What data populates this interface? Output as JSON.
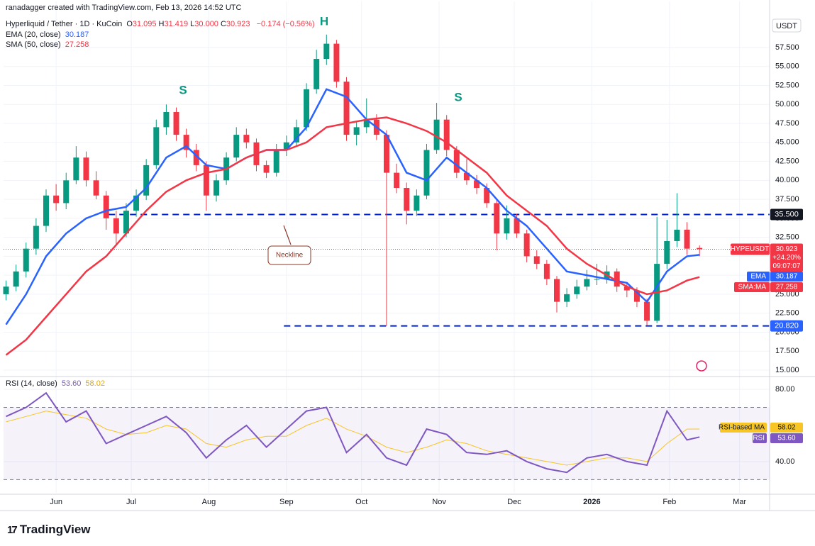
{
  "header": {
    "credit": "ranadagger created with TradingView.com, Feb 13, 2026 14:52 UTC",
    "symbol": "Hyperliquid / Tether · 1D · KuCoin",
    "ohlc": [
      {
        "key": "O",
        "value": "31.095"
      },
      {
        "key": "H",
        "value": "31.419"
      },
      {
        "key": "L",
        "value": "30.000"
      },
      {
        "key": "C",
        "value": "30.923"
      }
    ],
    "change": "−0.174 (−0.56%)"
  },
  "chart_data": [
    {
      "type": "candlestick",
      "currency": "USDT",
      "xlim": [
        -21,
        285
      ],
      "xticks": [
        {
          "value": 0,
          "label": "Jun"
        },
        {
          "value": 30,
          "label": "Jul"
        },
        {
          "value": 61,
          "label": "Aug"
        },
        {
          "value": 92,
          "label": "Sep"
        },
        {
          "value": 122,
          "label": "Oct"
        },
        {
          "value": 153,
          "label": "Nov"
        },
        {
          "value": 183,
          "label": "Dec"
        },
        {
          "value": 214,
          "label": "2026"
        },
        {
          "value": 245,
          "label": "Feb"
        },
        {
          "value": 273,
          "label": "Mar"
        }
      ],
      "ylim": [
        14.25,
        61.7
      ],
      "yticks": [
        {
          "value": 15,
          "label": "15.000"
        },
        {
          "value": 17.5,
          "label": "17.500"
        },
        {
          "value": 20,
          "label": "20.000"
        },
        {
          "value": 22.5,
          "label": "22.500"
        },
        {
          "value": 25,
          "label": "25.000"
        },
        {
          "value": 27.5,
          "label": "27.500"
        },
        {
          "value": 30,
          "label": "30.000"
        },
        {
          "value": 32.5,
          "label": "32.500"
        },
        {
          "value": 35,
          "label": "35.000"
        },
        {
          "value": 37.5,
          "label": "37.500"
        },
        {
          "value": 40,
          "label": "40.000"
        },
        {
          "value": 42.5,
          "label": "42.500"
        },
        {
          "value": 45,
          "label": "45.000"
        },
        {
          "value": 47.5,
          "label": "47.500"
        },
        {
          "value": 50,
          "label": "50.000"
        },
        {
          "value": 52.5,
          "label": "52.500"
        },
        {
          "value": 55,
          "label": "55.000"
        },
        {
          "value": 57.5,
          "label": "57.500"
        }
      ],
      "grid": true,
      "candles": {
        "up_color": "#089981",
        "down_color": "#f23645",
        "x": [
          -20,
          -16,
          -12,
          -8,
          -4,
          0,
          4,
          8,
          12,
          16,
          20,
          24,
          28,
          32,
          36,
          40,
          44,
          48,
          52,
          56,
          60,
          64,
          68,
          72,
          76,
          80,
          84,
          88,
          92,
          96,
          100,
          104,
          108,
          112,
          116,
          120,
          124,
          128,
          132,
          136,
          140,
          144,
          148,
          152,
          156,
          160,
          164,
          168,
          172,
          176,
          180,
          184,
          188,
          192,
          196,
          200,
          204,
          208,
          212,
          216,
          220,
          224,
          228,
          232,
          236,
          240,
          244,
          248,
          252,
          257
        ],
        "open": [
          25,
          26,
          28,
          31,
          34,
          38,
          37,
          40,
          43,
          40,
          38,
          35,
          33,
          36,
          38,
          42,
          47,
          49,
          46,
          44,
          42,
          38,
          40,
          43,
          46,
          45,
          42,
          41,
          44,
          45,
          47,
          52,
          56,
          58,
          53,
          46,
          47,
          48,
          46,
          41,
          39,
          36,
          38,
          44,
          48,
          44,
          41,
          40,
          39,
          37,
          33,
          35,
          33,
          30,
          29,
          27,
          24,
          25,
          26,
          27,
          27,
          28,
          26,
          25.5,
          24,
          21.5,
          29,
          32,
          33.5,
          31.095
        ],
        "high": [
          26.8,
          28.9,
          31.8,
          35,
          38.8,
          39.5,
          41,
          44.5,
          43.8,
          41.2,
          38.6,
          36,
          37,
          38.8,
          42.8,
          48,
          50,
          49.6,
          46.8,
          44.8,
          42.5,
          40.8,
          43.7,
          47,
          46.8,
          45.5,
          42.6,
          44.8,
          45.9,
          48,
          52.8,
          57.2,
          59.2,
          58.5,
          53.6,
          47.8,
          50.8,
          48.7,
          46.6,
          42.2,
          39.7,
          38.8,
          44.8,
          50.2,
          48.6,
          44.5,
          42.8,
          40.7,
          39.6,
          37.5,
          36.7,
          35.6,
          33.5,
          30.8,
          29.5,
          27.4,
          25.8,
          26.9,
          28.2,
          29,
          28.8,
          28.4,
          26.6,
          25.9,
          24.4,
          35.2,
          34.8,
          38.3,
          34.5,
          31.419
        ],
        "low": [
          24.2,
          25.4,
          27.2,
          30.2,
          33.2,
          36,
          36.2,
          39.5,
          39.2,
          37.5,
          33.5,
          31.5,
          32.5,
          35.2,
          37.4,
          41.5,
          46,
          45.2,
          43,
          41.2,
          36,
          37.2,
          39.4,
          42.5,
          44.2,
          41.2,
          40.3,
          40.5,
          43.2,
          44.4,
          46.5,
          51.4,
          55.2,
          52.2,
          45.2,
          44.6,
          46.2,
          45.3,
          20.82,
          38.3,
          34.2,
          35.3,
          37.5,
          43.5,
          43.2,
          40.3,
          39.4,
          38.2,
          36.4,
          30.8,
          32.2,
          32.4,
          29.2,
          28.3,
          26.2,
          22.6,
          23.3,
          24.4,
          25.5,
          26.2,
          26.4,
          25.3,
          24.6,
          23.3,
          20.9,
          21.2,
          28.3,
          31.2,
          30.2,
          30
        ],
        "close": [
          26,
          28,
          31,
          34,
          38,
          37,
          40,
          43,
          40,
          38,
          35,
          33,
          36,
          38,
          42,
          47,
          49,
          46,
          44,
          42,
          38,
          40,
          43,
          46,
          45,
          42,
          41,
          44,
          45,
          47,
          52,
          56,
          58,
          53,
          46,
          47,
          48,
          46,
          41,
          39,
          36,
          38,
          44,
          48,
          44,
          41,
          40,
          39,
          37,
          33,
          35,
          33,
          30,
          29,
          27,
          24,
          25,
          26,
          27,
          27,
          28,
          26,
          25.5,
          24,
          21.5,
          29,
          32,
          33.5,
          31,
          30.923
        ]
      },
      "series": [
        {
          "name": "EMA (20, close)",
          "tag": "EMA",
          "value_label": "30.187",
          "color": "#2962ff",
          "x": [
            -20,
            -12,
            -4,
            4,
            12,
            20,
            28,
            36,
            44,
            52,
            60,
            68,
            76,
            84,
            92,
            100,
            108,
            116,
            124,
            132,
            140,
            148,
            156,
            164,
            172,
            180,
            188,
            196,
            204,
            212,
            220,
            228,
            236,
            244,
            252,
            257
          ],
          "values": [
            21,
            25,
            30,
            33,
            35,
            36,
            36.5,
            39,
            43,
            44.5,
            42,
            41.5,
            43,
            44,
            44,
            47,
            52,
            51,
            48,
            46,
            41,
            40,
            43,
            41,
            39,
            36,
            34,
            31,
            28,
            27.5,
            27,
            26.5,
            24,
            28,
            30,
            30.187
          ]
        },
        {
          "name": "SMA (50, close)",
          "tag": "SMA:MA",
          "value_label": "27.258",
          "color": "#f23645",
          "x": [
            -20,
            -12,
            -4,
            4,
            12,
            20,
            28,
            36,
            44,
            52,
            60,
            68,
            76,
            84,
            92,
            100,
            108,
            116,
            124,
            132,
            140,
            148,
            156,
            164,
            172,
            180,
            188,
            196,
            204,
            212,
            220,
            228,
            236,
            244,
            252,
            257
          ],
          "values": [
            17,
            19,
            22,
            25,
            28,
            30,
            33,
            36,
            38.5,
            40,
            41,
            41.5,
            43,
            44,
            44,
            45,
            47,
            47.5,
            48,
            48.3,
            47.5,
            46.5,
            45,
            43,
            41,
            38,
            36,
            34,
            31,
            29,
            27.5,
            26,
            25,
            25.5,
            26.8,
            27.258
          ]
        }
      ],
      "levels": [
        {
          "value": 35.5,
          "label": "35.500",
          "color": "#0022cc",
          "tag_color": "#131722"
        },
        {
          "value": 20.82,
          "label": "20.820",
          "color": "#0022cc",
          "tag_color": "#2962ff"
        }
      ],
      "last_price": {
        "symbol": "HYPEUSDT",
        "label": "30.923",
        "change": "+24.20%",
        "countdown": "09:07:07",
        "color": "#f23645"
      },
      "annotations": [
        "S",
        "H",
        "S",
        "Neckline"
      ]
    },
    {
      "type": "line",
      "title": "RSI (14, close)",
      "ylim": [
        22.7,
        86.7
      ],
      "yticks": [
        {
          "value": 80,
          "label": "80.00"
        },
        {
          "value": 40,
          "label": "40.00"
        }
      ],
      "bands": [
        30,
        70
      ],
      "band_color": "#7e57c2",
      "x": [
        -20,
        -12,
        -4,
        4,
        12,
        20,
        28,
        36,
        44,
        52,
        60,
        68,
        76,
        84,
        92,
        100,
        108,
        116,
        124,
        132,
        140,
        148,
        156,
        164,
        172,
        180,
        188,
        196,
        204,
        212,
        220,
        228,
        236,
        244,
        252,
        257
      ],
      "series": [
        {
          "name": "RSI",
          "value_label": "53.60",
          "color": "#7e57c2",
          "values": [
            65,
            70,
            78,
            62,
            68,
            50,
            55,
            60,
            65,
            56,
            42,
            52,
            60,
            48,
            58,
            68,
            70,
            45,
            55,
            42,
            38,
            58,
            55,
            45,
            44,
            46,
            40,
            36,
            34,
            42,
            44,
            40,
            38,
            68,
            52,
            53.6
          ]
        },
        {
          "name": "RSI-based MA",
          "value_label": "58.02",
          "color": "#f7c525",
          "values": [
            62,
            65,
            68,
            66,
            64,
            58,
            55,
            56,
            60,
            58,
            50,
            48,
            52,
            54,
            54,
            60,
            64,
            58,
            54,
            48,
            45,
            48,
            52,
            50,
            46,
            44,
            42,
            40,
            38,
            40,
            42,
            42,
            40,
            50,
            58,
            58.02
          ]
        }
      ]
    }
  ],
  "footer": {
    "brand": "TradingView"
  }
}
